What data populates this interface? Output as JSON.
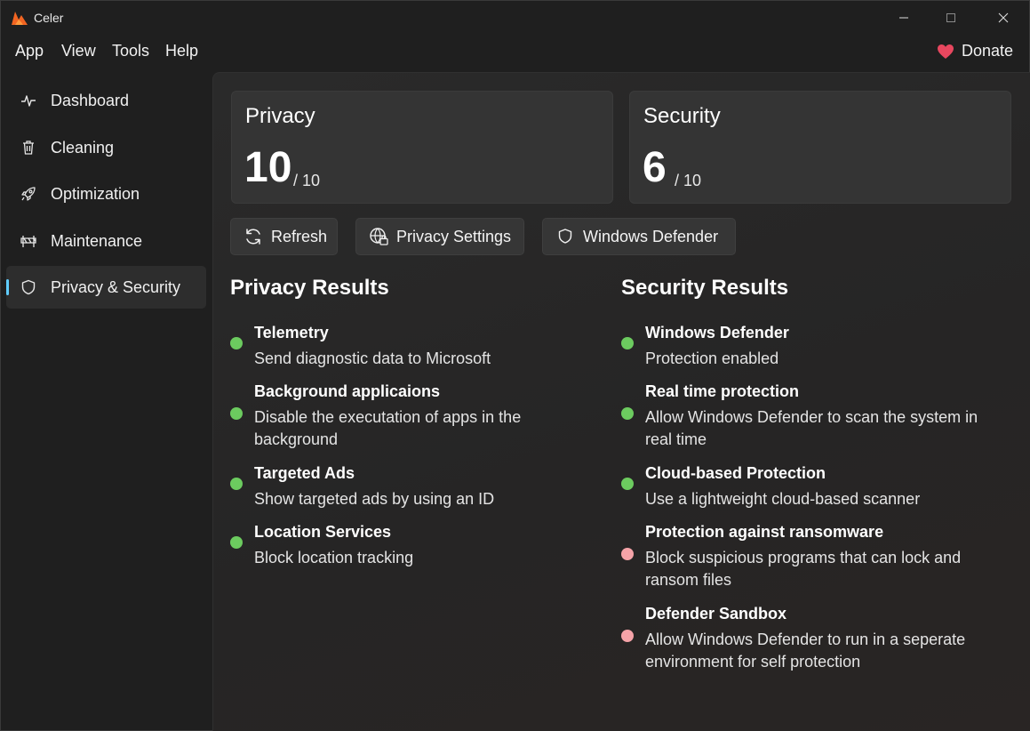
{
  "window": {
    "title": "Celer",
    "controls": {
      "minimize": "—",
      "maximize": "☐",
      "close": "✕"
    }
  },
  "menu": {
    "items": [
      "App",
      "View",
      "Tools",
      "Help"
    ],
    "donate": "Donate",
    "donate_icon": "heart-icon"
  },
  "sidebar": {
    "items": [
      {
        "label": "Dashboard",
        "icon": "activity-icon",
        "active": false
      },
      {
        "label": "Cleaning",
        "icon": "trash-icon",
        "active": false
      },
      {
        "label": "Optimization",
        "icon": "rocket-icon",
        "active": false
      },
      {
        "label": "Maintenance",
        "icon": "barrier-icon",
        "active": false
      },
      {
        "label": "Privacy & Security",
        "icon": "shield-icon",
        "active": true
      }
    ]
  },
  "scores": {
    "privacy": {
      "title": "Privacy",
      "score": "10",
      "max": "/ 10"
    },
    "security": {
      "title": "Security",
      "score": "6",
      "max": "/ 10"
    }
  },
  "actions": {
    "refresh": "Refresh",
    "privacy_settings": "Privacy Settings",
    "windows_defender": "Windows Defender"
  },
  "privacy_results": {
    "title": "Privacy Results",
    "items": [
      {
        "title": "Telemetry",
        "desc": "Send diagnostic data to Microsoft",
        "status": "ok"
      },
      {
        "title": "Background applicaions",
        "desc": "Disable the executation of apps in the background",
        "status": "ok"
      },
      {
        "title": "Targeted Ads",
        "desc": "Show targeted ads by using an ID",
        "status": "ok"
      },
      {
        "title": "Location Services",
        "desc": "Block location tracking",
        "status": "ok"
      }
    ]
  },
  "security_results": {
    "title": "Security Results",
    "items": [
      {
        "title": "Windows Defender",
        "desc": "Protection enabled",
        "status": "ok"
      },
      {
        "title": "Real time protection",
        "desc": "Allow Windows Defender to scan the system in real time",
        "status": "ok"
      },
      {
        "title": "Cloud-based Protection",
        "desc": "Use a lightweight cloud-based scanner",
        "status": "ok"
      },
      {
        "title": "Protection against ransomware",
        "desc": "Block suspicious programs that can lock and ransom files",
        "status": "bad"
      },
      {
        "title": "Defender Sandbox",
        "desc": "Allow Windows Defender to run in a seperate environment for self protection",
        "status": "bad"
      }
    ]
  },
  "colors": {
    "status_ok": "#6ccb5f",
    "status_bad": "#f5a3a8",
    "accent": "#60cdff",
    "heart": "#e8475f"
  }
}
